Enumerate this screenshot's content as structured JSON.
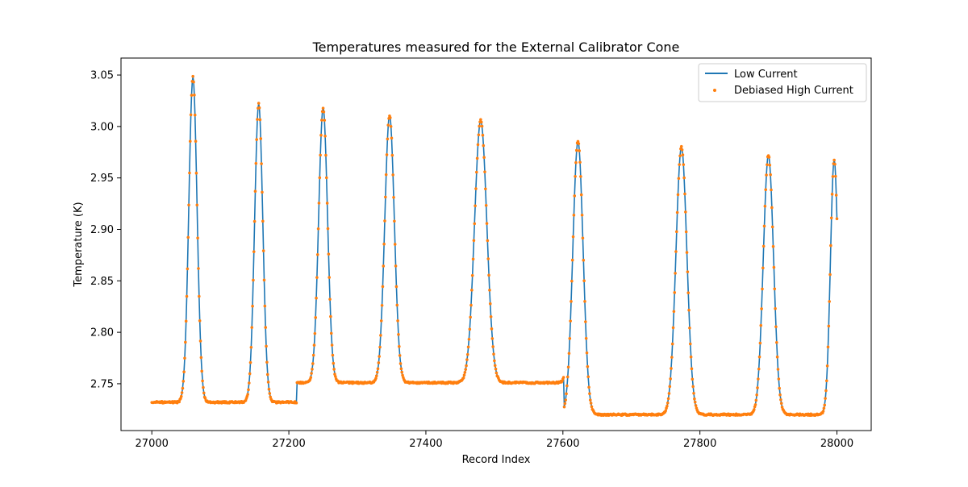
{
  "chart_data": {
    "type": "line",
    "title": "Temperatures measured for the External Calibrator Cone",
    "xlabel": "Record Index",
    "ylabel": "Temperature (K)",
    "xlim": [
      26955,
      28050
    ],
    "ylim": [
      2.7045,
      3.0665
    ],
    "xticks": [
      27000,
      27200,
      27400,
      27600,
      27800,
      28000
    ],
    "yticks": [
      2.75,
      2.8,
      2.85,
      2.9,
      2.95,
      3.0,
      3.05
    ],
    "ytick_labels": [
      "2.75",
      "2.80",
      "2.85",
      "2.90",
      "2.95",
      "3.00",
      "3.05"
    ],
    "grid": false,
    "legend_position": "upper right",
    "colors": {
      "low_current": "#1f77b4",
      "debiased": "#ff7f0e"
    },
    "x_range": [
      27000,
      28000
    ],
    "segments": [
      {
        "start": 27000,
        "end": 27212,
        "baseline": 2.732
      },
      {
        "start": 27212,
        "end": 27602,
        "baseline": 2.751
      },
      {
        "start": 27602,
        "end": 28000,
        "baseline": 2.72
      }
    ],
    "peaks": [
      {
        "center": 27060,
        "peak": 3.048,
        "width": 6.0
      },
      {
        "center": 27156,
        "peak": 3.022,
        "width": 6.0
      },
      {
        "center": 27250,
        "peak": 3.018,
        "width": 6.5
      },
      {
        "center": 27347,
        "peak": 3.011,
        "width": 7.0
      },
      {
        "center": 27480,
        "peak": 3.006,
        "width": 9.0
      },
      {
        "center": 27622,
        "peak": 2.986,
        "width": 7.5
      },
      {
        "center": 27773,
        "peak": 2.98,
        "width": 8.0
      },
      {
        "center": 27900,
        "peak": 2.972,
        "width": 7.5
      },
      {
        "center": 27996,
        "peak": 2.968,
        "width": 5.5
      }
    ],
    "series": [
      {
        "name": "Low Current",
        "style": "line"
      },
      {
        "name": "Debiased High Current",
        "style": "scatter"
      }
    ]
  }
}
